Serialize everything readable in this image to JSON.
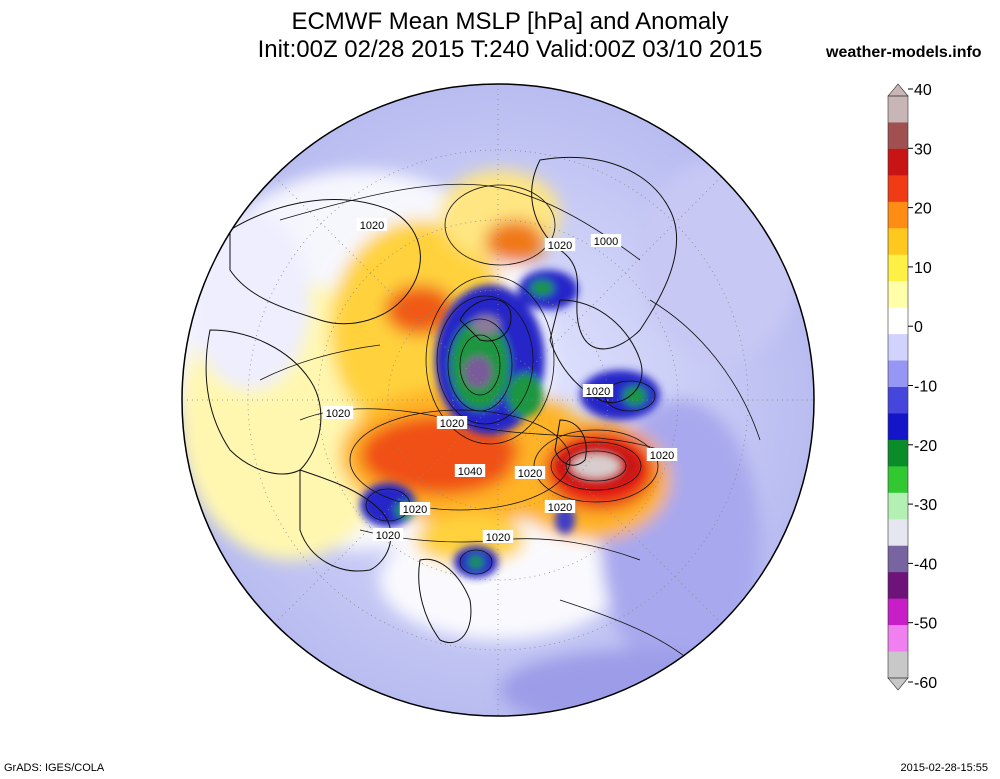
{
  "title_line1": "ECMWF Mean MSLP [hPa] and Anomaly",
  "title_line2": "Init:00Z 02/28 2015 T:240 Valid:00Z 03/10 2015",
  "brand": "weather-models.info",
  "footer_left": "GrADS: IGES/COLA",
  "footer_right": "2015-02-28-15:55",
  "isobar_labels": [
    "1020",
    "1020",
    "1020",
    "1020",
    "1000",
    "1020",
    "1020",
    "1040",
    "1020",
    "1020",
    "1020",
    "1020",
    "1020"
  ],
  "colorbar": {
    "ticks": [
      "40",
      "30",
      "20",
      "10",
      "0",
      "-10",
      "-20",
      "-30",
      "-40",
      "-50",
      "-60"
    ],
    "colors": [
      "#c8b6b6",
      "#a05050",
      "#c81414",
      "#f03c14",
      "#ff8c14",
      "#ffc81e",
      "#fff046",
      "#ffffaa",
      "#ffffff",
      "#d2d2ff",
      "#9696f5",
      "#4646dc",
      "#1414c8",
      "#0a8c28",
      "#32c832",
      "#b4f0b4",
      "#e6e6f0",
      "#7864a0",
      "#6e1478",
      "#c81ec8",
      "#f07ff0",
      "#c8c8c8"
    ]
  },
  "colors": {
    "positive_strong": "#d21e1e",
    "positive_mid": "#f07814",
    "positive_weak": "#f5dc3c",
    "negative_weak": "#b4b4f0",
    "negative_mid": "#3232d2",
    "negative_strong": "#148c3c"
  }
}
